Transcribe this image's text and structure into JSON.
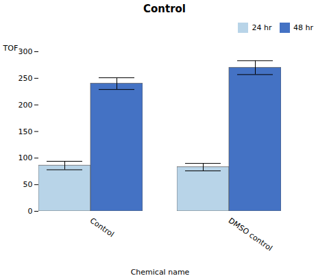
{
  "chart_data": {
    "type": "bar",
    "title": "Control",
    "xlabel": "Chemical name",
    "ylabel": "TOF",
    "categories": [
      "Control",
      "DMSO control"
    ],
    "series": [
      {
        "name": "24 hr",
        "color": "#b8d4e8",
        "values": [
          86,
          83
        ],
        "errors": [
          8,
          7
        ]
      },
      {
        "name": "48 hr",
        "color": "#4472c4",
        "values": [
          240,
          270
        ],
        "errors": [
          11,
          13
        ]
      }
    ],
    "ylim": [
      0,
      300
    ],
    "yticks": [
      0,
      50,
      100,
      150,
      200,
      250,
      300
    ],
    "grid": false,
    "legend": "upper right"
  }
}
